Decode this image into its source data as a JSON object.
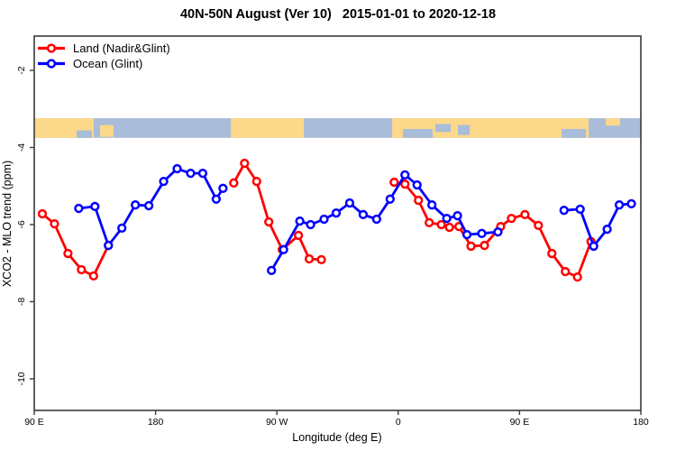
{
  "chart_data": {
    "type": "line",
    "title": "40N-50N August (Ver 10)   2015-01-01 to 2020-12-18",
    "xlabel": "Longitude (deg E)",
    "ylabel": "XCO2 - MLO trend (ppm)",
    "xlim": [
      90,
      540
    ],
    "ylim": [
      -10.82,
      -1.11
    ],
    "grid": false,
    "legend_position": "top-left-inside",
    "x_ticks": [
      {
        "pos": 90,
        "label": "90 E"
      },
      {
        "pos": 180,
        "label": "180"
      },
      {
        "pos": 270,
        "label": "90 W"
      },
      {
        "pos": 360,
        "label": "0"
      },
      {
        "pos": 450,
        "label": "90 E"
      },
      {
        "pos": 540,
        "label": "180"
      }
    ],
    "y_ticks": [
      {
        "pos": -2,
        "label": "-2"
      },
      {
        "pos": -4,
        "label": "-4"
      },
      {
        "pos": -6,
        "label": "-6"
      },
      {
        "pos": -8,
        "label": "-8"
      },
      {
        "pos": -10,
        "label": "-10"
      }
    ],
    "map_band": {
      "v_top": -3.24,
      "v_bottom": -3.75,
      "ocean_color": "#a9bcd9",
      "land_color": "#fbd88a",
      "land": [
        {
          "lon0": 90,
          "lon1": 134.1,
          "f0": 0,
          "f1": 1
        },
        {
          "lon0": 138.8,
          "lon1": 148.8,
          "f0": 0.35,
          "f1": 0.95
        },
        {
          "lon0": 235.8,
          "lon1": 290.0,
          "f0": 0,
          "f1": 1
        },
        {
          "lon0": 355.5,
          "lon1": 501.3,
          "f0": 0,
          "f1": 1
        },
        {
          "lon0": 514.0,
          "lon1": 524.5,
          "f0": 0,
          "f1": 0.38
        }
      ],
      "inland_ocean": [
        {
          "lon0": 121.4,
          "lon1": 132.8,
          "f0": 0.62,
          "f1": 1
        },
        {
          "lon0": 363.5,
          "lon1": 385.6,
          "f0": 0.55,
          "f1": 1
        },
        {
          "lon0": 387.6,
          "lon1": 399.0,
          "f0": 0.3,
          "f1": 0.7
        },
        {
          "lon0": 404.3,
          "lon1": 413.0,
          "f0": 0.35,
          "f1": 0.85
        },
        {
          "lon0": 481.2,
          "lon1": 499.3,
          "f0": 0.55,
          "f1": 1
        }
      ]
    },
    "series": [
      {
        "name": "Land (Nadir&Glint)",
        "color": "#ff0000",
        "marker": "open-circle",
        "segments": [
          [
            [
              96,
              -5.72
            ],
            [
              105,
              -5.98
            ],
            [
              115,
              -6.75
            ],
            [
              125,
              -7.17
            ],
            [
              134,
              -7.33
            ],
            [
              145,
              -6.54
            ]
          ],
          [
            [
              238,
              -4.92
            ],
            [
              246,
              -4.41
            ],
            [
              255,
              -4.88
            ],
            [
              264,
              -5.93
            ],
            [
              274,
              -6.65
            ],
            [
              286,
              -6.28
            ],
            [
              294,
              -6.89
            ],
            [
              303,
              -6.91
            ]
          ],
          [
            [
              357,
              -4.9
            ],
            [
              365,
              -4.95
            ],
            [
              375,
              -5.37
            ],
            [
              383,
              -5.95
            ],
            [
              392,
              -6.0
            ],
            [
              398,
              -6.07
            ],
            [
              405,
              -6.05
            ],
            [
              414,
              -6.56
            ],
            [
              424,
              -6.54
            ],
            [
              436,
              -6.05
            ],
            [
              444,
              -5.84
            ],
            [
              454,
              -5.74
            ],
            [
              464,
              -6.02
            ],
            [
              474,
              -6.75
            ],
            [
              484,
              -7.22
            ],
            [
              493,
              -7.36
            ],
            [
              503,
              -6.44
            ]
          ]
        ]
      },
      {
        "name": "Ocean (Glint)",
        "color": "#0000ff",
        "marker": "open-circle",
        "segments": [
          [
            [
              123,
              -5.58
            ],
            [
              135,
              -5.53
            ],
            [
              145,
              -6.54
            ],
            [
              155,
              -6.09
            ],
            [
              165,
              -5.49
            ],
            [
              175,
              -5.51
            ],
            [
              186,
              -4.88
            ],
            [
              196,
              -4.55
            ],
            [
              206,
              -4.67
            ],
            [
              215,
              -4.67
            ],
            [
              225,
              -5.34
            ],
            [
              230,
              -5.06
            ]
          ],
          [
            [
              266,
              -7.19
            ],
            [
              275,
              -6.65
            ],
            [
              287,
              -5.91
            ],
            [
              295,
              -6.0
            ],
            [
              305,
              -5.86
            ],
            [
              314,
              -5.7
            ],
            [
              324,
              -5.44
            ],
            [
              334,
              -5.74
            ],
            [
              344,
              -5.86
            ],
            [
              354,
              -5.34
            ],
            [
              365,
              -4.71
            ],
            [
              374,
              -4.97
            ],
            [
              385,
              -5.49
            ],
            [
              396,
              -5.84
            ],
            [
              404,
              -5.77
            ],
            [
              411,
              -6.26
            ],
            [
              422,
              -6.23
            ],
            [
              434,
              -6.19
            ]
          ],
          [
            [
              483,
              -5.63
            ],
            [
              495,
              -5.6
            ],
            [
              505,
              -6.56
            ],
            [
              515,
              -6.12
            ],
            [
              524,
              -5.49
            ],
            [
              533,
              -5.46
            ]
          ]
        ]
      }
    ]
  }
}
